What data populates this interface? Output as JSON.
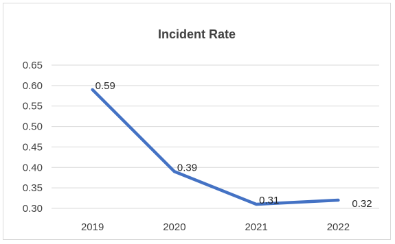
{
  "chart_data": {
    "type": "line",
    "title": "Incident Rate",
    "categories": [
      "2019",
      "2020",
      "2021",
      "2022"
    ],
    "series": [
      {
        "values": [
          0.59,
          0.39,
          0.31,
          0.32
        ],
        "color": "#4472c4"
      }
    ],
    "data_labels": [
      "0.59",
      "0.39",
      "0.31",
      "0.32"
    ],
    "yticks": [
      "0.30",
      "0.35",
      "0.40",
      "0.45",
      "0.50",
      "0.55",
      "0.60",
      "0.65"
    ],
    "ylim": [
      0.3,
      0.65
    ],
    "grid": true,
    "legend": "none",
    "gridline_color": "#d9d9d9"
  }
}
